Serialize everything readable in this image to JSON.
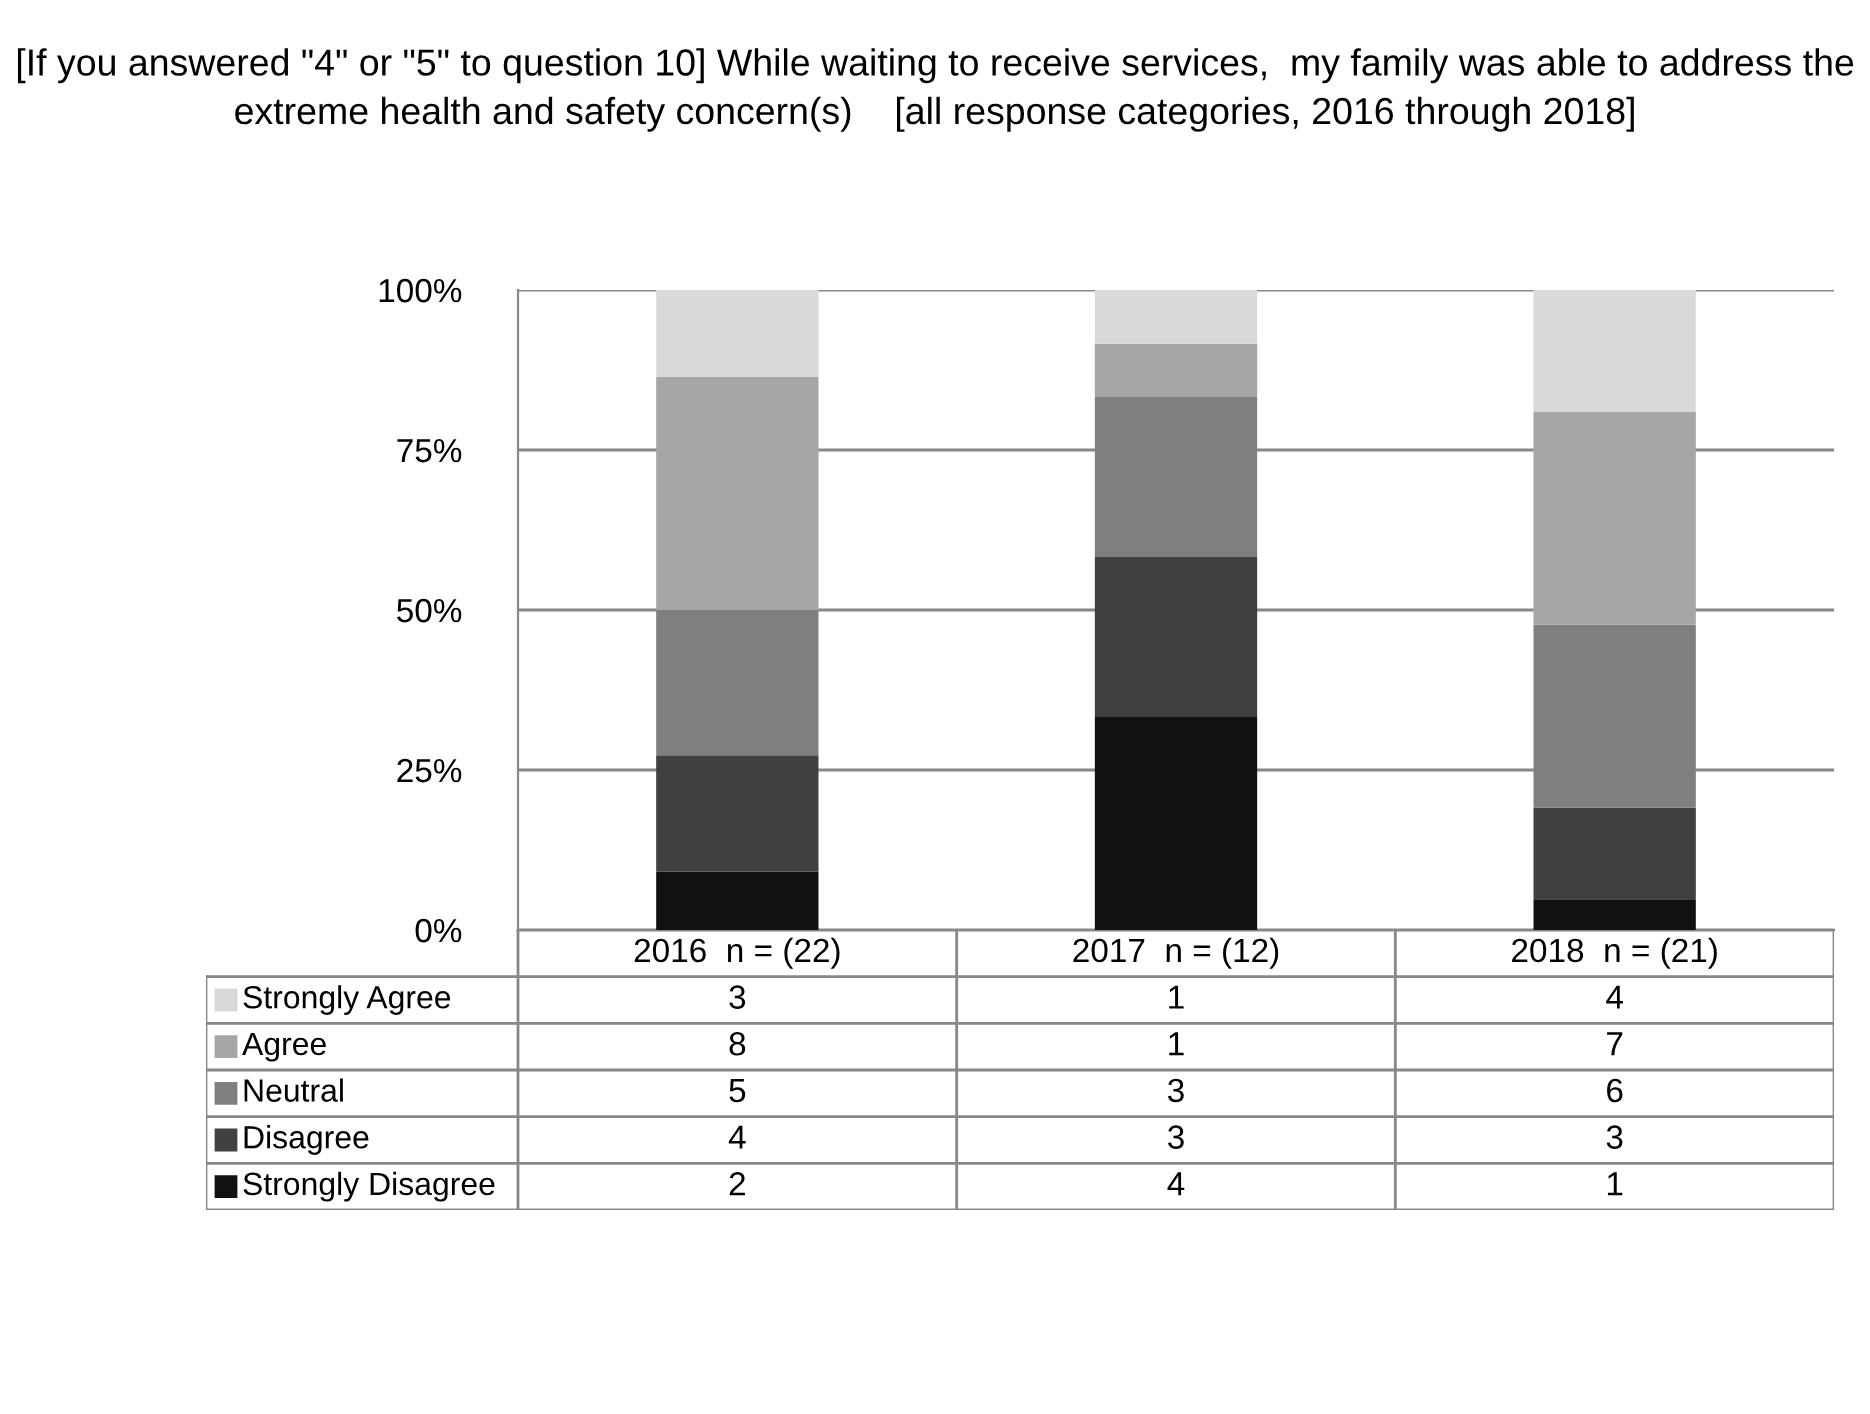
{
  "chart_data": {
    "type": "bar",
    "stacked": true,
    "title": "[If you answered \"4\" or \"5\" to question 10] While waiting to receive services,  my family was able to address the extreme health and safety concern(s)    [all response categories, 2016 through 2018]",
    "categories": [
      "2016  n = (22)",
      "2017  n = (12)",
      "2018  n = (21)"
    ],
    "ylim": [
      0,
      100
    ],
    "yticks": [
      {
        "value": 0,
        "label": "0%"
      },
      {
        "value": 25,
        "label": "25%"
      },
      {
        "value": 50,
        "label": "50%"
      },
      {
        "value": 75,
        "label": "75%"
      },
      {
        "value": 100,
        "label": "100%"
      }
    ],
    "grid": "y",
    "legend": "bottom",
    "annotations": [
      "3",
      "1",
      "4",
      "8",
      "1",
      "7",
      "5",
      "3",
      "6",
      "4",
      "3",
      "3",
      "2",
      "4",
      "1"
    ],
    "series": [
      {
        "name": "Strongly Disagree",
        "color": "#111111",
        "values": [
          9.1,
          33.3,
          4.8
        ]
      },
      {
        "name": "Disagree",
        "color": "#404040",
        "values": [
          18.2,
          25.0,
          14.3
        ]
      },
      {
        "name": "Neutral",
        "color": "#7f7f7f",
        "values": [
          22.7,
          25.0,
          28.6
        ]
      },
      {
        "name": "Agree",
        "color": "#a6a6a6",
        "values": [
          36.4,
          8.3,
          33.3
        ]
      },
      {
        "name": "Strongly Agree",
        "color": "#d9d9d9",
        "values": [
          13.6,
          8.4,
          19.0
        ]
      }
    ]
  }
}
